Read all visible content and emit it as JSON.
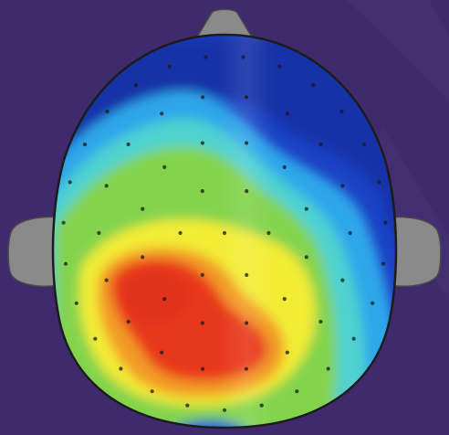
{
  "figure": {
    "kind": "eeg-topographic-head-map",
    "background_color": "#3f2a6d",
    "outline_color": "#1c1c1c",
    "ear_color": "#8a8a8a",
    "nose_color": "#8a8a8a",
    "electrode_color": "#1a1a1a",
    "colormap": [
      "#0b2d9a",
      "#1f56d6",
      "#2fb7ee",
      "#57d9b8",
      "#8fd34e",
      "#f0ee3a",
      "#f6b126",
      "#ef5a1d",
      "#e2321c"
    ],
    "electrode_count": 64
  }
}
